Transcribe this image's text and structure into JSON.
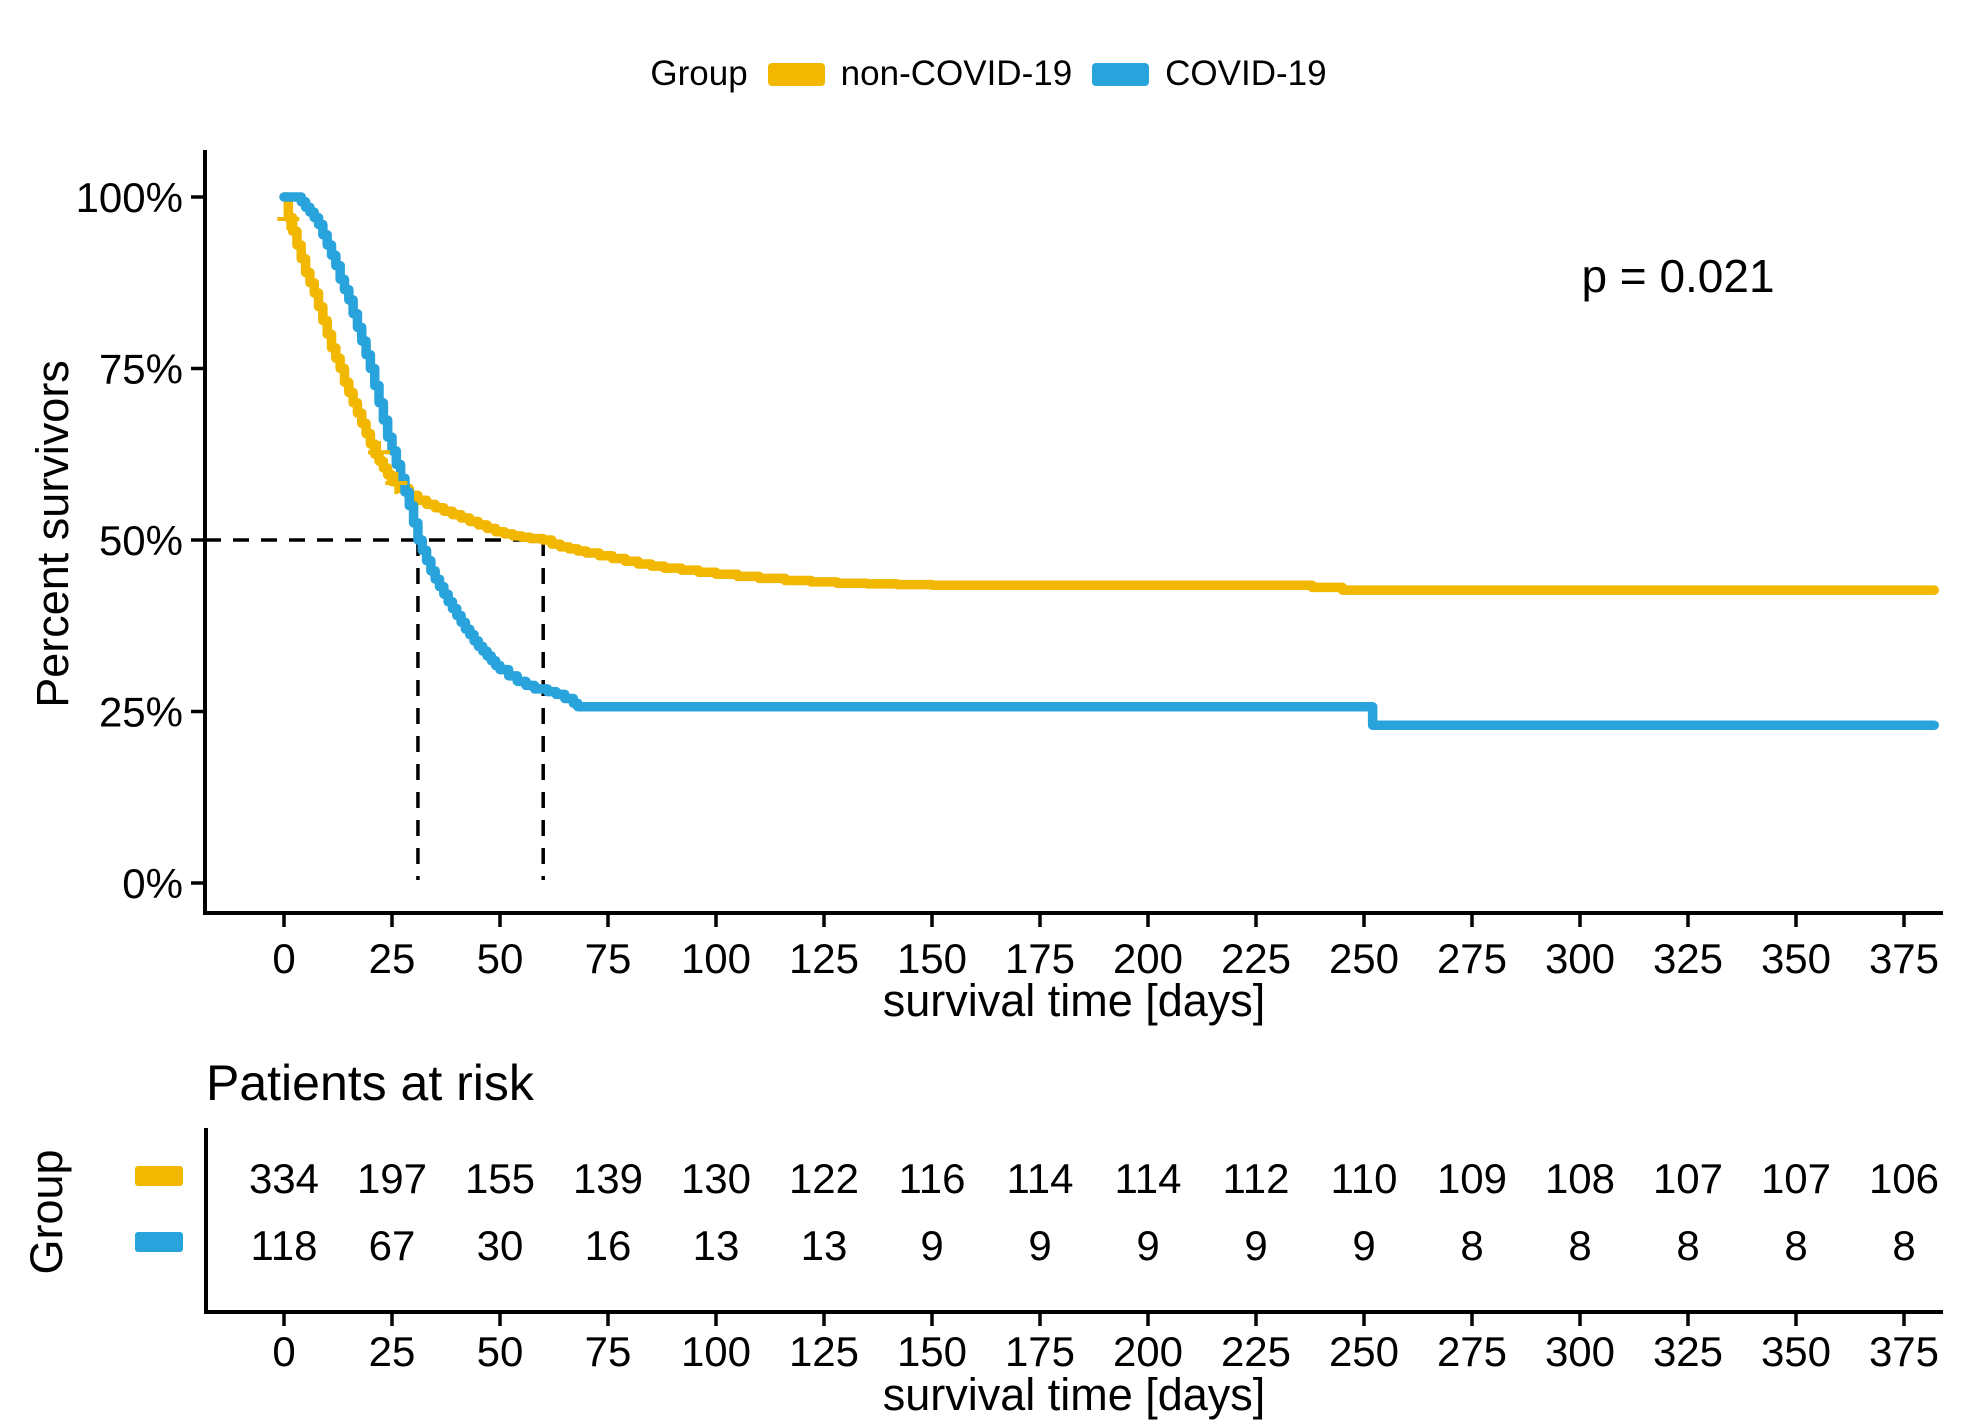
{
  "chart_data": {
    "type": "line",
    "subtype": "kaplan-meier-step-curves",
    "legend": {
      "title": "Group",
      "entries": [
        {
          "label": "non-COVID-19",
          "color": "#F2B700"
        },
        {
          "label": "COVID-19",
          "color": "#29A3DC"
        }
      ],
      "position": "top-center"
    },
    "annotation": {
      "p_value": "p = 0.021"
    },
    "xlabel": "survival time [days]",
    "ylabel": "Percent survivors",
    "x_ticks": [
      0,
      25,
      50,
      75,
      100,
      125,
      150,
      175,
      200,
      225,
      250,
      275,
      300,
      325,
      350,
      375
    ],
    "y_ticks": [
      {
        "value": 0,
        "label": "0%"
      },
      {
        "value": 25,
        "label": "25%"
      },
      {
        "value": 50,
        "label": "50%"
      },
      {
        "value": 75,
        "label": "75%"
      },
      {
        "value": 100,
        "label": "100%"
      }
    ],
    "x_range_days": [
      0,
      382
    ],
    "ylim_percent": [
      0,
      100
    ],
    "grid": false,
    "series": [
      {
        "name": "non-COVID-19",
        "color": "#F2B700",
        "steps": [
          [
            0,
            100
          ],
          [
            1,
            97
          ],
          [
            2,
            95
          ],
          [
            3,
            93
          ],
          [
            4,
            91
          ],
          [
            5,
            89
          ],
          [
            6,
            87.5
          ],
          [
            7,
            86
          ],
          [
            8,
            84
          ],
          [
            9,
            82
          ],
          [
            10,
            80
          ],
          [
            11,
            78
          ],
          [
            12,
            76.5
          ],
          [
            13,
            75
          ],
          [
            14,
            73
          ],
          [
            15,
            71.5
          ],
          [
            16,
            70
          ],
          [
            17,
            68.5
          ],
          [
            18,
            67
          ],
          [
            19,
            65.5
          ],
          [
            20,
            64
          ],
          [
            21,
            62.5
          ],
          [
            22,
            61.5
          ],
          [
            23,
            60.5
          ],
          [
            24,
            59.5
          ],
          [
            25,
            58.5
          ],
          [
            27,
            57.5
          ],
          [
            29,
            56.5
          ],
          [
            31,
            55.8
          ],
          [
            33,
            55.2
          ],
          [
            35,
            54.7
          ],
          [
            37,
            54.2
          ],
          [
            39,
            53.7
          ],
          [
            41,
            53.2
          ],
          [
            43,
            52.7
          ],
          [
            45,
            52.2
          ],
          [
            47,
            51.7
          ],
          [
            49,
            51.2
          ],
          [
            51,
            50.9
          ],
          [
            53,
            50.6
          ],
          [
            55,
            50.4
          ],
          [
            57,
            50.2
          ],
          [
            60,
            50
          ],
          [
            62,
            49.4
          ],
          [
            64,
            49
          ],
          [
            66,
            48.7
          ],
          [
            68,
            48.4
          ],
          [
            70,
            48.1
          ],
          [
            73,
            47.7
          ],
          [
            76,
            47.3
          ],
          [
            79,
            46.9
          ],
          [
            82,
            46.5
          ],
          [
            85,
            46.2
          ],
          [
            88,
            45.9
          ],
          [
            92,
            45.6
          ],
          [
            96,
            45.3
          ],
          [
            100,
            45
          ],
          [
            105,
            44.7
          ],
          [
            110,
            44.4
          ],
          [
            116,
            44.1
          ],
          [
            122,
            43.9
          ],
          [
            128,
            43.7
          ],
          [
            135,
            43.6
          ],
          [
            142,
            43.5
          ],
          [
            150,
            43.4
          ],
          [
            238,
            43.1
          ],
          [
            245,
            42.7
          ],
          [
            382,
            42.7
          ]
        ]
      },
      {
        "name": "COVID-19",
        "color": "#29A3DC",
        "steps": [
          [
            0,
            100
          ],
          [
            4,
            99.3
          ],
          [
            5,
            98.5
          ],
          [
            6,
            97.8
          ],
          [
            7,
            97
          ],
          [
            8,
            96
          ],
          [
            9,
            94.5
          ],
          [
            10,
            93
          ],
          [
            11,
            91.5
          ],
          [
            12,
            90
          ],
          [
            13,
            88
          ],
          [
            14,
            86.5
          ],
          [
            15,
            85
          ],
          [
            16,
            83
          ],
          [
            17,
            81
          ],
          [
            18,
            79
          ],
          [
            19,
            77
          ],
          [
            20,
            75
          ],
          [
            21,
            72.5
          ],
          [
            22,
            70
          ],
          [
            23,
            67.5
          ],
          [
            24,
            65
          ],
          [
            25,
            63
          ],
          [
            26,
            61
          ],
          [
            27,
            59
          ],
          [
            28,
            57
          ],
          [
            29,
            55
          ],
          [
            30,
            52.5
          ],
          [
            31,
            50
          ],
          [
            32,
            48.5
          ],
          [
            33,
            47
          ],
          [
            34,
            45.5
          ],
          [
            35,
            44.3
          ],
          [
            36,
            43.2
          ],
          [
            37,
            42.1
          ],
          [
            38,
            41
          ],
          [
            39,
            40
          ],
          [
            40,
            39
          ],
          [
            41,
            38
          ],
          [
            42,
            37
          ],
          [
            43,
            36.2
          ],
          [
            44,
            35.3
          ],
          [
            45,
            34.5
          ],
          [
            46,
            33.8
          ],
          [
            47,
            33.1
          ],
          [
            48,
            32.4
          ],
          [
            49,
            31.7
          ],
          [
            50,
            31.1
          ],
          [
            52,
            30.2
          ],
          [
            54,
            29.4
          ],
          [
            56,
            28.8
          ],
          [
            58,
            28.3
          ],
          [
            61,
            27.9
          ],
          [
            63,
            27.5
          ],
          [
            65,
            26.9
          ],
          [
            67,
            26.2
          ],
          [
            68,
            25.7
          ],
          [
            252,
            23
          ],
          [
            382,
            23
          ]
        ]
      }
    ],
    "median_lines": {
      "horizontal_percent": 50,
      "vertical_days": [
        31,
        60
      ],
      "style": "dashed-black"
    },
    "censor_marks": {
      "series": "non-COVID-19",
      "color": "#F2B700",
      "points_day_percent": [
        [
          1,
          96.8
        ],
        [
          22,
          62.8
        ],
        [
          26,
          58.3
        ]
      ]
    },
    "risk_table": {
      "title": "Patients at risk",
      "group_axis_label": "Group",
      "xlabel": "survival time [days]",
      "x_ticks": [
        0,
        25,
        50,
        75,
        100,
        125,
        150,
        175,
        200,
        225,
        250,
        275,
        300,
        325,
        350,
        375
      ],
      "rows": [
        {
          "name": "non-COVID-19",
          "color": "#F2B700",
          "counts": [
            334,
            197,
            155,
            139,
            130,
            122,
            116,
            114,
            114,
            112,
            110,
            109,
            108,
            107,
            107,
            106
          ]
        },
        {
          "name": "COVID-19",
          "color": "#29A3DC",
          "counts": [
            118,
            67,
            30,
            16,
            13,
            13,
            9,
            9,
            9,
            9,
            9,
            8,
            8,
            8,
            8,
            8
          ]
        }
      ]
    }
  }
}
